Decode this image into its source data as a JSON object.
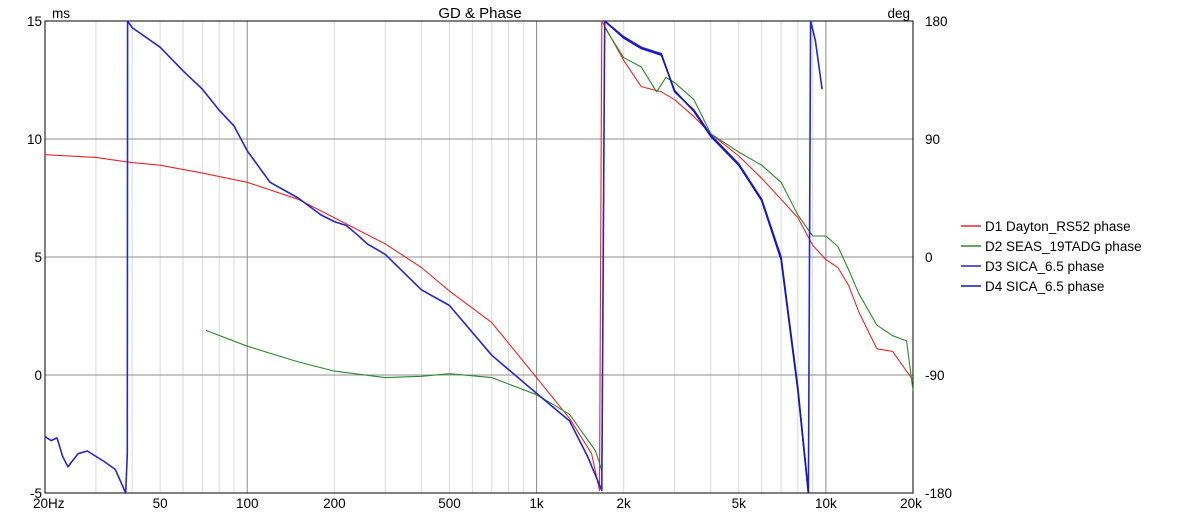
{
  "chart_data": {
    "type": "line",
    "title": "GD & Phase",
    "y_left": {
      "unit": "ms",
      "lim": [
        -5,
        15
      ],
      "ticks": [
        15,
        10,
        5,
        0,
        -5
      ],
      "tick_labels": [
        "15",
        "10",
        "5",
        "0",
        "-5"
      ]
    },
    "y_right": {
      "unit": "deg",
      "lim": [
        -180,
        180
      ],
      "ticks": [
        180,
        90,
        0,
        -90,
        -180
      ],
      "tick_labels": [
        "180",
        "90",
        "0",
        "-90",
        "-180"
      ]
    },
    "x": {
      "scale": "log",
      "lim": [
        20,
        20000
      ],
      "ticks": [
        20,
        50,
        100,
        200,
        500,
        1000,
        2000,
        5000,
        10000,
        20000
      ],
      "tick_labels": [
        "20Hz",
        "50",
        "100",
        "200",
        "500",
        "1k",
        "2k",
        "5k",
        "10k",
        "20k"
      ]
    },
    "grid": true,
    "legend_position": "right",
    "series": [
      {
        "name": "D1 Dayton_RS52 phase",
        "color": "#e8262a",
        "axis": "right",
        "points": [
          [
            20,
            78
          ],
          [
            30,
            76
          ],
          [
            40,
            72
          ],
          [
            50,
            70
          ],
          [
            70,
            64
          ],
          [
            100,
            57
          ],
          [
            150,
            44
          ],
          [
            200,
            30
          ],
          [
            300,
            10
          ],
          [
            400,
            -8
          ],
          [
            500,
            -26
          ],
          [
            700,
            -50
          ],
          [
            1000,
            -92
          ],
          [
            1300,
            -123
          ],
          [
            1550,
            -150
          ],
          [
            1650,
            -178
          ],
          [
            1680,
            180
          ],
          [
            2000,
            150
          ],
          [
            2300,
            130
          ],
          [
            2700,
            126
          ],
          [
            3000,
            120
          ],
          [
            3500,
            107
          ],
          [
            4000,
            94
          ],
          [
            5000,
            77
          ],
          [
            6000,
            60
          ],
          [
            7000,
            44
          ],
          [
            8000,
            30
          ],
          [
            9000,
            9
          ],
          [
            10000,
            -2
          ],
          [
            11000,
            -8
          ],
          [
            12000,
            -22
          ],
          [
            13000,
            -42
          ],
          [
            15000,
            -70
          ],
          [
            17000,
            -72
          ],
          [
            20000,
            -94
          ]
        ]
      },
      {
        "name": "D2 SEAS_19TADG phase",
        "color": "#2a8a2a",
        "axis": "right",
        "points": [
          [
            72,
            -56
          ],
          [
            100,
            -68
          ],
          [
            150,
            -80
          ],
          [
            200,
            -87
          ],
          [
            300,
            -92
          ],
          [
            400,
            -91
          ],
          [
            500,
            -89
          ],
          [
            700,
            -92
          ],
          [
            1000,
            -105
          ],
          [
            1300,
            -120
          ],
          [
            1600,
            -148
          ],
          [
            1680,
            -163
          ],
          [
            1720,
            175
          ],
          [
            2000,
            152
          ],
          [
            2300,
            145
          ],
          [
            2600,
            126
          ],
          [
            2800,
            137
          ],
          [
            3000,
            133
          ],
          [
            3500,
            120
          ],
          [
            4000,
            94
          ],
          [
            5000,
            80
          ],
          [
            6000,
            70
          ],
          [
            7000,
            57
          ],
          [
            8000,
            32
          ],
          [
            9000,
            16
          ],
          [
            10000,
            16
          ],
          [
            11000,
            8
          ],
          [
            12000,
            -10
          ],
          [
            13000,
            -28
          ],
          [
            15000,
            -52
          ],
          [
            17000,
            -60
          ],
          [
            19000,
            -64
          ],
          [
            20000,
            -102
          ]
        ]
      },
      {
        "name": "D3 SICA_6.5 phase",
        "color": "#2525d0",
        "axis": "right",
        "points": [
          [
            20,
            -137
          ],
          [
            21,
            -140
          ],
          [
            22,
            -138
          ],
          [
            23,
            -152
          ],
          [
            24,
            -160
          ],
          [
            26,
            -150
          ],
          [
            28,
            -148
          ],
          [
            32,
            -156
          ],
          [
            35,
            -162
          ],
          [
            38,
            -180
          ],
          [
            38.5,
            -150
          ],
          [
            38.6,
            180
          ],
          [
            40,
            175
          ],
          [
            50,
            160
          ],
          [
            60,
            142
          ],
          [
            70,
            128
          ],
          [
            80,
            112
          ],
          [
            90,
            100
          ],
          [
            100,
            81
          ],
          [
            120,
            57
          ],
          [
            150,
            45
          ],
          [
            180,
            32
          ],
          [
            200,
            27
          ],
          [
            220,
            24
          ],
          [
            240,
            17
          ],
          [
            260,
            10
          ],
          [
            300,
            2
          ],
          [
            400,
            -25
          ],
          [
            500,
            -37
          ],
          [
            700,
            -75
          ],
          [
            1000,
            -104
          ],
          [
            1300,
            -125
          ],
          [
            1500,
            -152
          ],
          [
            1680,
            -178
          ],
          [
            1720,
            180
          ],
          [
            2000,
            168
          ],
          [
            2300,
            160
          ],
          [
            2700,
            155
          ],
          [
            3000,
            126
          ],
          [
            3500,
            112
          ],
          [
            4000,
            93
          ],
          [
            5000,
            71
          ],
          [
            6000,
            44
          ],
          [
            7000,
            0
          ],
          [
            8000,
            -100
          ],
          [
            8700,
            -180
          ],
          [
            8850,
            180
          ],
          [
            9200,
            165
          ],
          [
            9700,
            128
          ]
        ]
      },
      {
        "name": "D4 SICA_6.5 phase",
        "color": "#1414c0",
        "axis": "right",
        "points": [
          [
            1720,
            180
          ],
          [
            2000,
            167
          ],
          [
            2300,
            159
          ],
          [
            2700,
            154
          ],
          [
            3000,
            127
          ],
          [
            3500,
            111
          ],
          [
            4000,
            92
          ],
          [
            5000,
            70
          ],
          [
            6000,
            43
          ],
          [
            7000,
            -2
          ],
          [
            8000,
            -102
          ],
          [
            8700,
            -180
          ]
        ]
      }
    ]
  }
}
